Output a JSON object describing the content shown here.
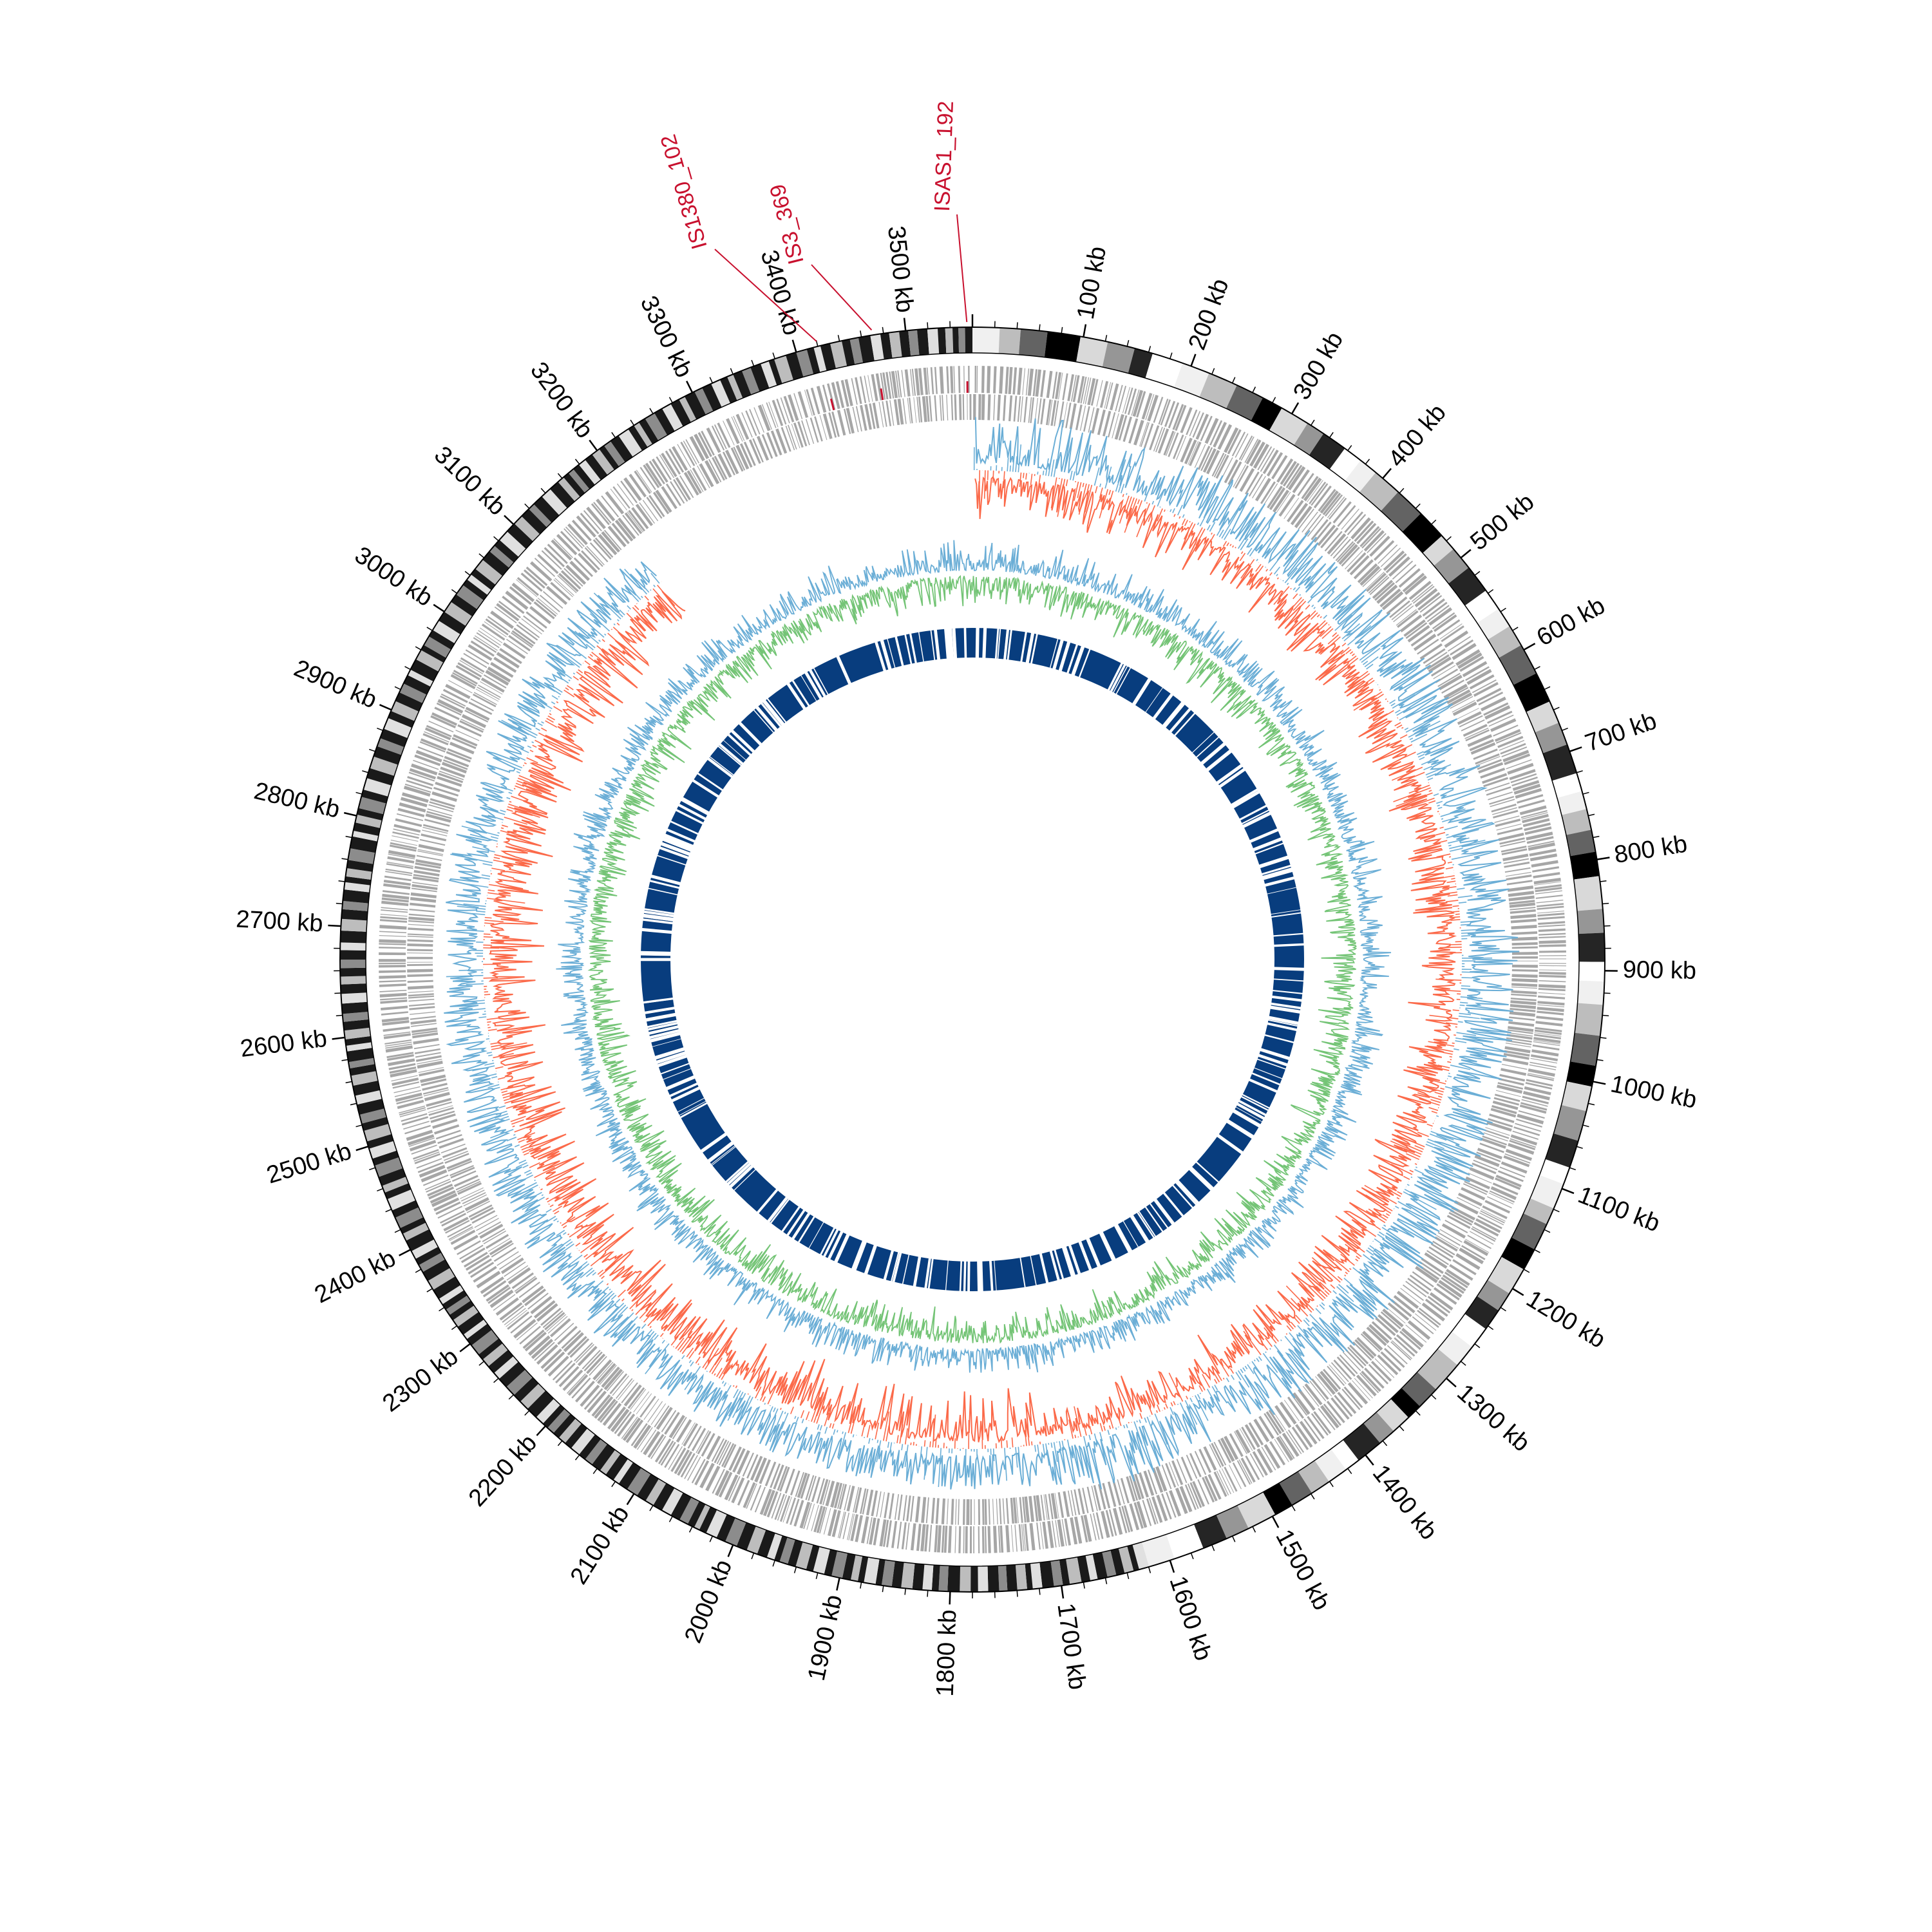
{
  "genome": {
    "length_kb": 3560,
    "tick_labels": [
      "100 kb",
      "200 kb",
      "300 kb",
      "400 kb",
      "500 kb",
      "600 kb",
      "700 kb",
      "800 kb",
      "900 kb",
      "1000 kb",
      "1100 kb",
      "1200 kb",
      "1300 kb",
      "1400 kb",
      "1500 kb",
      "1600 kb",
      "1700 kb",
      "1800 kb",
      "1900 kb",
      "2000 kb",
      "2100 kb",
      "2200 kb",
      "2300 kb",
      "2400 kb",
      "2500 kb",
      "2600 kb",
      "2700 kb",
      "2800 kb",
      "2900 kb",
      "3000 kb",
      "3100 kb",
      "3200 kb",
      "3300 kb",
      "3400 kb",
      "3500 kb"
    ],
    "tick_positions_kb": [
      100,
      200,
      300,
      400,
      500,
      600,
      700,
      800,
      900,
      1000,
      1100,
      1200,
      1300,
      1400,
      1500,
      1600,
      1700,
      1800,
      1900,
      2000,
      2100,
      2200,
      2300,
      2400,
      2500,
      2600,
      2700,
      2800,
      2900,
      3000,
      3100,
      3200,
      3300,
      3400,
      3500
    ]
  },
  "insertion_sequences": [
    {
      "label": "ISAS1_192",
      "position_kb": 3555
    },
    {
      "label": "IS3_369",
      "position_kb": 3470
    },
    {
      "label": "IS1380_102",
      "position_kb": 3420
    }
  ],
  "colors": {
    "ideogram_shades": [
      "#f0f0f0",
      "#bdbdbd",
      "#636363",
      "#000000",
      "#d9d9d9",
      "#969696",
      "#252525",
      "#ffffff"
    ],
    "gene_track": "#a6a6a6",
    "gc_skew_positive": "#6baed6",
    "gc_skew_negative": "#fb6a4a",
    "gc_content_high": "#6baed6",
    "gc_content_low": "#74c476",
    "inner_ring": "#083d7e",
    "is_marker": "#c8102e"
  }
}
